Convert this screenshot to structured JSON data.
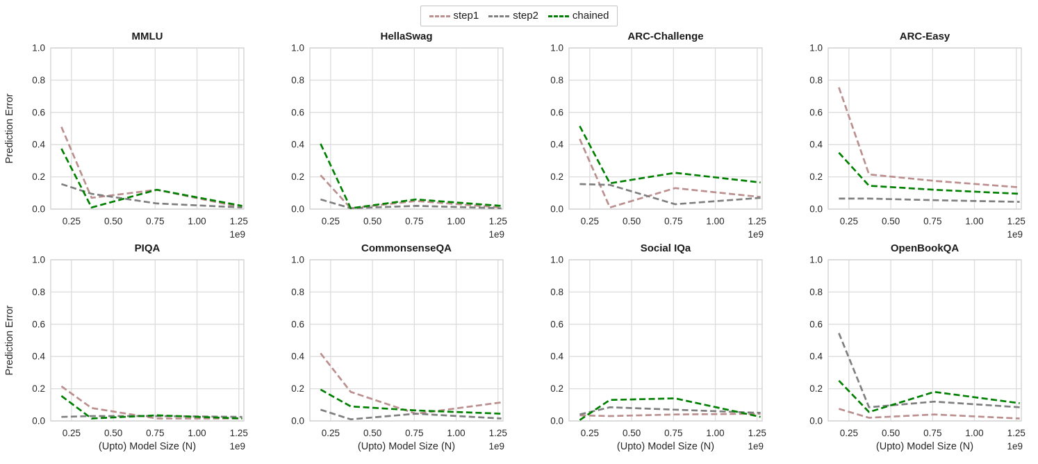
{
  "figure": {
    "ylabel": "Prediction Error",
    "xlabel": "(Upto) Model Size (N)",
    "x_offset_label": "1e9",
    "background_color": "#ffffff",
    "grid_color": "#dcdcdc",
    "spine_color": "#cfcfcf",
    "text_color": "#262626"
  },
  "legend": {
    "position": "top-center",
    "items": [
      {
        "label": "step1",
        "color": "#bc8f8f"
      },
      {
        "label": "step2",
        "color": "#7f7f7f"
      },
      {
        "label": "chained",
        "color": "#008000"
      }
    ]
  },
  "chart_data": [
    {
      "type": "line",
      "title": "MMLU",
      "ylabel": "Prediction Error",
      "x_offset_label": "1e9",
      "x": [
        0.19,
        0.37,
        0.76,
        1.27
      ],
      "xlim": [
        0.126,
        1.28
      ],
      "ylim": [
        0.0,
        1.0
      ],
      "xticks": [
        "0.25",
        "0.50",
        "0.75",
        "1.00",
        "1.25"
      ],
      "yticks": [
        "0.0",
        "0.2",
        "0.4",
        "0.6",
        "0.8",
        "1.0"
      ],
      "grid": true,
      "series": [
        {
          "name": "step1",
          "values": [
            0.51,
            0.07,
            0.12,
            0.01
          ]
        },
        {
          "name": "step2",
          "values": [
            0.155,
            0.095,
            0.035,
            0.01
          ]
        },
        {
          "name": "chained",
          "values": [
            0.375,
            0.01,
            0.12,
            0.02
          ]
        }
      ]
    },
    {
      "type": "line",
      "title": "HellaSwag",
      "x_offset_label": "1e9",
      "x": [
        0.19,
        0.37,
        0.76,
        1.27
      ],
      "xlim": [
        0.126,
        1.28
      ],
      "ylim": [
        0.0,
        1.0
      ],
      "xticks": [
        "0.25",
        "0.50",
        "0.75",
        "1.00",
        "1.25"
      ],
      "yticks": [
        "0.0",
        "0.2",
        "0.4",
        "0.6",
        "0.8",
        "1.0"
      ],
      "grid": true,
      "series": [
        {
          "name": "step1",
          "values": [
            0.21,
            0.005,
            0.05,
            0.01
          ]
        },
        {
          "name": "step2",
          "values": [
            0.06,
            0.005,
            0.02,
            0.005
          ]
        },
        {
          "name": "chained",
          "values": [
            0.405,
            0.005,
            0.06,
            0.02
          ]
        }
      ]
    },
    {
      "type": "line",
      "title": "ARC-Challenge",
      "x_offset_label": "1e9",
      "x": [
        0.19,
        0.37,
        0.76,
        1.27
      ],
      "xlim": [
        0.126,
        1.28
      ],
      "ylim": [
        0.0,
        1.0
      ],
      "xticks": [
        "0.25",
        "0.50",
        "0.75",
        "1.00",
        "1.25"
      ],
      "yticks": [
        "0.0",
        "0.2",
        "0.4",
        "0.6",
        "0.8",
        "1.0"
      ],
      "grid": true,
      "series": [
        {
          "name": "step1",
          "values": [
            0.435,
            0.01,
            0.13,
            0.075
          ]
        },
        {
          "name": "step2",
          "values": [
            0.155,
            0.15,
            0.03,
            0.07
          ]
        },
        {
          "name": "chained",
          "values": [
            0.515,
            0.16,
            0.225,
            0.165
          ]
        }
      ]
    },
    {
      "type": "line",
      "title": "ARC-Easy",
      "x_offset_label": "1e9",
      "x": [
        0.19,
        0.37,
        0.76,
        1.27
      ],
      "xlim": [
        0.126,
        1.28
      ],
      "ylim": [
        0.0,
        1.0
      ],
      "xticks": [
        "0.25",
        "0.50",
        "0.75",
        "1.00",
        "1.25"
      ],
      "yticks": [
        "0.0",
        "0.2",
        "0.4",
        "0.6",
        "0.8",
        "1.0"
      ],
      "grid": true,
      "series": [
        {
          "name": "step1",
          "values": [
            0.755,
            0.215,
            0.175,
            0.135
          ]
        },
        {
          "name": "step2",
          "values": [
            0.065,
            0.065,
            0.055,
            0.045
          ]
        },
        {
          "name": "chained",
          "values": [
            0.35,
            0.145,
            0.12,
            0.095
          ]
        }
      ]
    },
    {
      "type": "line",
      "title": "PIQA",
      "ylabel": "Prediction Error",
      "xlabel": "(Upto) Model Size (N)",
      "x_offset_label": "1e9",
      "x": [
        0.19,
        0.37,
        0.76,
        1.27
      ],
      "xlim": [
        0.126,
        1.28
      ],
      "ylim": [
        0.0,
        1.0
      ],
      "xticks": [
        "0.25",
        "0.50",
        "0.75",
        "1.00",
        "1.25"
      ],
      "yticks": [
        "0.0",
        "0.2",
        "0.4",
        "0.6",
        "0.8",
        "1.0"
      ],
      "grid": true,
      "series": [
        {
          "name": "step1",
          "values": [
            0.215,
            0.08,
            0.015,
            0.015
          ]
        },
        {
          "name": "step2",
          "values": [
            0.025,
            0.03,
            0.03,
            0.025
          ]
        },
        {
          "name": "chained",
          "values": [
            0.155,
            0.015,
            0.035,
            0.015
          ]
        }
      ]
    },
    {
      "type": "line",
      "title": "CommonsenseQA",
      "xlabel": "(Upto) Model Size (N)",
      "x_offset_label": "1e9",
      "x": [
        0.19,
        0.37,
        0.76,
        1.27
      ],
      "xlim": [
        0.126,
        1.28
      ],
      "ylim": [
        0.0,
        1.0
      ],
      "xticks": [
        "0.25",
        "0.50",
        "0.75",
        "1.00",
        "1.25"
      ],
      "yticks": [
        "0.0",
        "0.2",
        "0.4",
        "0.6",
        "0.8",
        "1.0"
      ],
      "grid": true,
      "series": [
        {
          "name": "step1",
          "values": [
            0.42,
            0.18,
            0.045,
            0.115
          ]
        },
        {
          "name": "step2",
          "values": [
            0.07,
            0.01,
            0.045,
            0.015
          ]
        },
        {
          "name": "chained",
          "values": [
            0.195,
            0.09,
            0.065,
            0.045
          ]
        }
      ]
    },
    {
      "type": "line",
      "title": "Social IQa",
      "xlabel": "(Upto) Model Size (N)",
      "x_offset_label": "1e9",
      "x": [
        0.19,
        0.37,
        0.76,
        1.27
      ],
      "xlim": [
        0.126,
        1.28
      ],
      "ylim": [
        0.0,
        1.0
      ],
      "xticks": [
        "0.25",
        "0.50",
        "0.75",
        "1.00",
        "1.25"
      ],
      "yticks": [
        "0.0",
        "0.2",
        "0.4",
        "0.6",
        "0.8",
        "1.0"
      ],
      "grid": true,
      "series": [
        {
          "name": "step1",
          "values": [
            0.035,
            0.03,
            0.04,
            0.045
          ]
        },
        {
          "name": "step2",
          "values": [
            0.04,
            0.085,
            0.07,
            0.05
          ]
        },
        {
          "name": "chained",
          "values": [
            0.005,
            0.13,
            0.14,
            0.025
          ]
        }
      ]
    },
    {
      "type": "line",
      "title": "OpenBookQA",
      "xlabel": "(Upto) Model Size (N)",
      "x_offset_label": "1e9",
      "x": [
        0.19,
        0.37,
        0.76,
        1.27
      ],
      "xlim": [
        0.126,
        1.28
      ],
      "ylim": [
        0.0,
        1.0
      ],
      "xticks": [
        "0.25",
        "0.50",
        "0.75",
        "1.00",
        "1.25"
      ],
      "yticks": [
        "0.0",
        "0.2",
        "0.4",
        "0.6",
        "0.8",
        "1.0"
      ],
      "grid": true,
      "series": [
        {
          "name": "step1",
          "values": [
            0.075,
            0.02,
            0.04,
            0.015
          ]
        },
        {
          "name": "step2",
          "values": [
            0.545,
            0.085,
            0.12,
            0.085
          ]
        },
        {
          "name": "chained",
          "values": [
            0.25,
            0.055,
            0.18,
            0.11
          ]
        }
      ]
    }
  ]
}
